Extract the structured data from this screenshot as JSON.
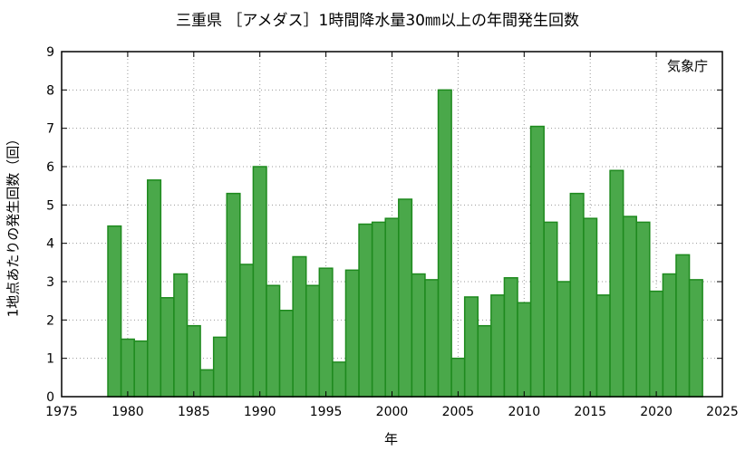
{
  "chart_data": {
    "type": "bar",
    "title": "三重県 ［アメダス］1時間降水量30㎜以上の年間発生回数",
    "xlabel": "年",
    "ylabel": "1地点あたりの発生回数（回）",
    "annotation": "気象庁",
    "xlim": [
      1975,
      2025
    ],
    "ylim": [
      0,
      9
    ],
    "xticks": [
      1975,
      1980,
      1985,
      1990,
      1995,
      2000,
      2005,
      2010,
      2015,
      2020,
      2025
    ],
    "yticks": [
      0,
      1,
      2,
      3,
      4,
      5,
      6,
      7,
      8,
      9
    ],
    "grid": true,
    "bar_color": "#4aa84a",
    "bar_edge_color": "#1e8a1e",
    "x": [
      1979,
      1980,
      1981,
      1982,
      1983,
      1984,
      1985,
      1986,
      1987,
      1988,
      1989,
      1990,
      1991,
      1992,
      1993,
      1994,
      1995,
      1996,
      1997,
      1998,
      1999,
      2000,
      2001,
      2002,
      2003,
      2004,
      2005,
      2006,
      2007,
      2008,
      2009,
      2010,
      2011,
      2012,
      2013,
      2014,
      2015,
      2016,
      2017,
      2018,
      2019,
      2020,
      2021,
      2022,
      2023
    ],
    "values": [
      4.45,
      1.5,
      1.45,
      5.65,
      2.58,
      3.2,
      1.85,
      0.7,
      1.55,
      5.3,
      3.45,
      6.0,
      2.9,
      2.25,
      3.65,
      2.9,
      3.35,
      0.9,
      3.3,
      4.5,
      4.55,
      4.65,
      5.15,
      3.2,
      3.05,
      8.0,
      1.0,
      2.6,
      1.85,
      2.65,
      3.1,
      2.45,
      7.05,
      4.55,
      3.0,
      5.3,
      4.65,
      2.65,
      5.9,
      4.7,
      4.55,
      2.75,
      3.2,
      3.7,
      3.05
    ]
  }
}
